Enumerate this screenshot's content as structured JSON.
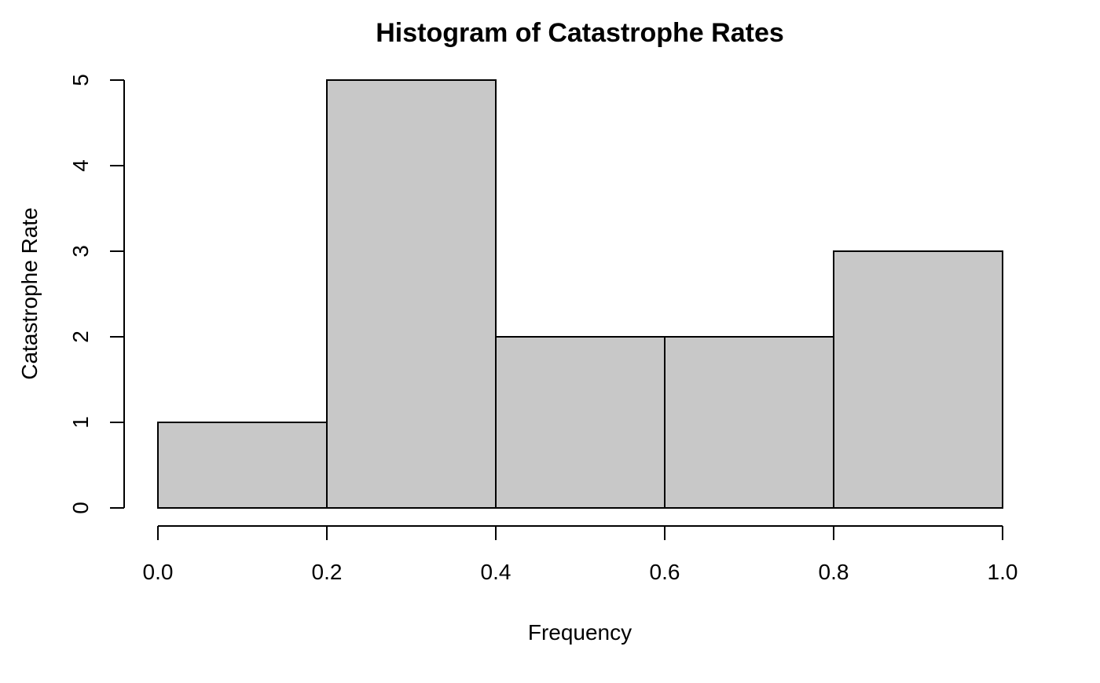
{
  "chart_data": {
    "type": "bar",
    "title": "Histogram of Catastrophe Rates",
    "xlabel": "Frequency",
    "ylabel": "Catastrophe Rate",
    "bins": [
      {
        "start": 0.0,
        "end": 0.2,
        "count": 1
      },
      {
        "start": 0.2,
        "end": 0.4,
        "count": 5
      },
      {
        "start": 0.4,
        "end": 0.6,
        "count": 2
      },
      {
        "start": 0.6,
        "end": 0.8,
        "count": 2
      },
      {
        "start": 0.8,
        "end": 1.0,
        "count": 3
      }
    ],
    "xlim": [
      0.0,
      1.0
    ],
    "ylim": [
      0,
      5
    ],
    "x_ticks": [
      "0.0",
      "0.2",
      "0.4",
      "0.6",
      "0.8",
      "1.0"
    ],
    "y_ticks": [
      "0",
      "1",
      "2",
      "3",
      "4",
      "5"
    ],
    "grid": false,
    "legend": "none",
    "colors": {
      "bar_fill": "#c8c8c8",
      "bar_stroke": "#000000",
      "background": "#ffffff"
    }
  }
}
